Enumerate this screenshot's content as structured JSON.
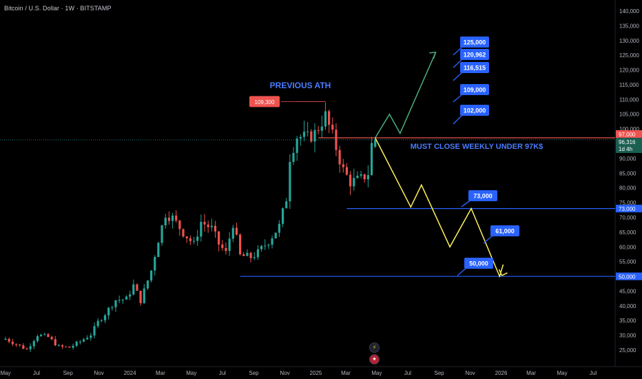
{
  "header": {
    "symbol_line": "Bitcoin / U.S. Dollar · 1W · BITSTAMP"
  },
  "colors": {
    "background": "#000000",
    "up_candle": "#26a69a",
    "down_candle": "#ef5350",
    "resistance_line": "#ef5350",
    "support_line": "#2962ff",
    "label_blue": "#2962ff",
    "label_red": "#ef5350",
    "bull_path": "#4caf7d",
    "bear_path": "#fff25a",
    "annotation_text": "#4a7cff",
    "axis_text": "#b2b5be"
  },
  "icons": {
    "pane_icons": [
      "lightning-icon",
      "us-flag-icon"
    ]
  },
  "chart_data": {
    "type": "candlestick",
    "title": "Bitcoin / U.S. Dollar · 1W · BITSTAMP",
    "y_ticks": [
      "25,000",
      "30,000",
      "35,000",
      "40,000",
      "45,000",
      "50,000",
      "55,000",
      "60,000",
      "65,000",
      "70,000",
      "75,000",
      "80,000",
      "85,000",
      "90,000",
      "95,000",
      "100,000",
      "105,000",
      "110,000",
      "115,000",
      "120,000",
      "125,000",
      "130,000",
      "135,000",
      "140,000"
    ],
    "x_ticks": [
      "May",
      "Jul",
      "Sep",
      "Nov",
      "2024",
      "Mar",
      "May",
      "Jul",
      "Sep",
      "Nov",
      "2025",
      "Mar",
      "May",
      "Jul",
      "Sep",
      "Nov",
      "2026",
      "Mar",
      "May",
      "Jul"
    ],
    "ylim": [
      22000,
      142000
    ],
    "grid": false,
    "close_series": [
      [
        "2023-05-01",
        28800
      ],
      [
        "2023-05-22",
        27000
      ],
      [
        "2023-06-12",
        25200
      ],
      [
        "2023-07-03",
        30200
      ],
      [
        "2023-07-24",
        29400
      ],
      [
        "2023-08-14",
        26100
      ],
      [
        "2023-09-04",
        25900
      ],
      [
        "2023-09-25",
        27900
      ],
      [
        "2023-10-16",
        30300
      ],
      [
        "2023-10-30",
        34500
      ],
      [
        "2023-11-13",
        37300
      ],
      [
        "2023-12-04",
        42000
      ],
      [
        "2023-12-25",
        42300
      ],
      [
        "2024-01-08",
        46900
      ],
      [
        "2024-01-22",
        41800
      ],
      [
        "2024-02-12",
        52000
      ],
      [
        "2024-02-26",
        62500
      ],
      [
        "2024-03-11",
        71300
      ],
      [
        "2024-03-25",
        69800
      ],
      [
        "2024-04-15",
        64900
      ],
      [
        "2024-05-06",
        60800
      ],
      [
        "2024-05-20",
        68500
      ],
      [
        "2024-06-10",
        66200
      ],
      [
        "2024-06-24",
        61000
      ],
      [
        "2024-07-08",
        57900
      ],
      [
        "2024-07-22",
        68000
      ],
      [
        "2024-08-05",
        57000
      ],
      [
        "2024-08-26",
        56500
      ],
      [
        "2024-09-09",
        58000
      ],
      [
        "2024-09-30",
        62000
      ],
      [
        "2024-10-21",
        67000
      ],
      [
        "2024-11-04",
        76500
      ],
      [
        "2024-11-11",
        90500
      ],
      [
        "2024-11-25",
        97500
      ],
      [
        "2024-12-16",
        97000
      ],
      [
        "2024-12-30",
        98500
      ],
      [
        "2025-01-20",
        104500
      ],
      [
        "2025-02-03",
        97500
      ],
      [
        "2025-02-24",
        86000
      ],
      [
        "2025-03-10",
        82000
      ],
      [
        "2025-03-31",
        83000
      ],
      [
        "2025-04-14",
        85000
      ],
      [
        "2025-04-21",
        94700
      ],
      [
        "2025-04-28",
        96316
      ]
    ],
    "annotations": {
      "previous_ath_label": "PREVIOUS ATH",
      "ath_price": "109,300",
      "close_note": "MUST CLOSE WEEKLY UNDER 97K$",
      "bull_targets": [
        "125,000",
        "120,962",
        "116,515",
        "109,000",
        "102,000"
      ],
      "bear_targets": [
        "73,000",
        "61,000",
        "50,000"
      ],
      "resistance_price": "97,000",
      "current_price": "96,316",
      "countdown": "1d 4h",
      "support_73": "73,000",
      "support_50": "50,000"
    },
    "bull_path": [
      [
        "2025-04-28",
        97000
      ],
      [
        "2025-05-26",
        105000
      ],
      [
        "2025-06-16",
        98500
      ],
      [
        "2025-08-25",
        126000
      ]
    ],
    "bear_path": [
      [
        "2025-04-28",
        97000
      ],
      [
        "2025-07-07",
        73500
      ],
      [
        "2025-07-28",
        81000
      ],
      [
        "2025-09-22",
        60000
      ],
      [
        "2025-11-03",
        73000
      ],
      [
        "2025-12-29",
        50000
      ],
      [
        "2026-01-05",
        54000
      ]
    ],
    "levels": [
      {
        "name": "resistance",
        "value": 97000,
        "from": "2025-01-06",
        "to": "end"
      },
      {
        "name": "support-73k",
        "value": 73000,
        "from": "2025-03-03",
        "to": "end"
      },
      {
        "name": "support-50k",
        "value": 50000,
        "from": "2024-08-05",
        "to": "end"
      },
      {
        "name": "ath",
        "value": 109300,
        "from": "2024-11-25",
        "to": "2025-01-20"
      }
    ]
  }
}
